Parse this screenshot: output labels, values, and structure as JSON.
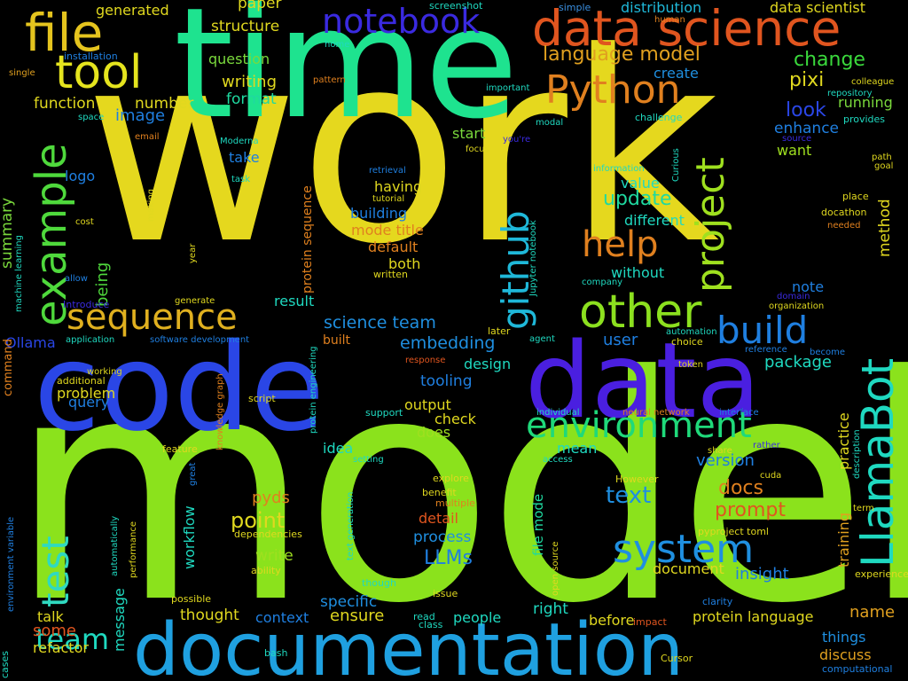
{
  "word_cloud": {
    "background": "#000000",
    "words": [
      {
        "text": "work",
        "color": "#e5d81e"
      },
      {
        "text": "model",
        "color": "#8be21c"
      },
      {
        "text": "time",
        "color": "#1ee38f"
      },
      {
        "text": "code",
        "color": "#2a46e6"
      },
      {
        "text": "data",
        "color": "#4a1fe0"
      },
      {
        "text": "documentation",
        "color": "#1fa0e0"
      },
      {
        "text": "data science",
        "color": "#e0551f"
      },
      {
        "text": "file",
        "color": "#e5c41e"
      },
      {
        "text": "tool",
        "color": "#e5e41e"
      },
      {
        "text": "notebook",
        "color": "#3a2ae0"
      },
      {
        "text": "Python",
        "color": "#e0801f"
      },
      {
        "text": "example",
        "color": "#4fd93c"
      },
      {
        "text": "sequence",
        "color": "#e0b01f"
      },
      {
        "text": "github",
        "color": "#1fb8d9"
      },
      {
        "text": "other",
        "color": "#8ce01f"
      },
      {
        "text": "project",
        "color": "#9fe01f"
      },
      {
        "text": "help",
        "color": "#e0801f"
      },
      {
        "text": "build",
        "color": "#1f7fe0"
      },
      {
        "text": "LlamaBot",
        "color": "#1fd9c0"
      },
      {
        "text": "environment",
        "color": "#1fd97a"
      },
      {
        "text": "system",
        "color": "#1f8fe0"
      },
      {
        "text": "test",
        "color": "#2fd9c0"
      },
      {
        "text": "team",
        "color": "#1fd9c0"
      },
      {
        "text": "language model",
        "color": "#e0a01f"
      },
      {
        "text": "structure",
        "color": "#e0d81f"
      },
      {
        "text": "generated",
        "color": "#e0d81f"
      },
      {
        "text": "paper",
        "color": "#e0d81f"
      },
      {
        "text": "screenshot",
        "color": "#1fd9c0"
      },
      {
        "text": "simple",
        "color": "#3a8fe0"
      },
      {
        "text": "distribution",
        "color": "#1fb8d9"
      },
      {
        "text": "data scientist",
        "color": "#e0d81f"
      },
      {
        "text": "human",
        "color": "#e0801f"
      },
      {
        "text": "installation",
        "color": "#1f7fe0"
      },
      {
        "text": "question",
        "color": "#7ad93c"
      },
      {
        "text": "writing",
        "color": "#e0d81f"
      },
      {
        "text": "format",
        "color": "#1fd9a0"
      },
      {
        "text": "function",
        "color": "#e0d81f"
      },
      {
        "text": "number",
        "color": "#e0d81f"
      },
      {
        "text": "image",
        "color": "#1f7fe0"
      },
      {
        "text": "change",
        "color": "#3ad93c"
      },
      {
        "text": "pixi",
        "color": "#e0d81f"
      },
      {
        "text": "look",
        "color": "#2a46e6"
      },
      {
        "text": "enhance",
        "color": "#1f7fe0"
      },
      {
        "text": "create",
        "color": "#1f8fe0"
      },
      {
        "text": "home",
        "color": "#1fd9c0"
      },
      {
        "text": "pattern",
        "color": "#e0801f"
      },
      {
        "text": "important",
        "color": "#1fd9c0"
      },
      {
        "text": "repository",
        "color": "#1fd9c0"
      },
      {
        "text": "colleague",
        "color": "#e0d81f"
      },
      {
        "text": "running",
        "color": "#7ad93c"
      },
      {
        "text": "provides",
        "color": "#1fd9c0"
      },
      {
        "text": "challenge",
        "color": "#1fd9c0"
      },
      {
        "text": "modal",
        "color": "#1fd9c0"
      },
      {
        "text": "single",
        "color": "#e0a01f"
      },
      {
        "text": "space",
        "color": "#1fd9c0"
      },
      {
        "text": "email",
        "color": "#e0801f"
      },
      {
        "text": "Moderna",
        "color": "#1fd9c0"
      },
      {
        "text": "start",
        "color": "#7ad93c"
      },
      {
        "text": "you're",
        "color": "#3a2ae0"
      },
      {
        "text": "focus",
        "color": "#e0d81f"
      },
      {
        "text": "source",
        "color": "#3a2ae0"
      },
      {
        "text": "want",
        "color": "#9fe01f"
      },
      {
        "text": "take",
        "color": "#1f7fe0"
      },
      {
        "text": "task",
        "color": "#1fd9c0"
      },
      {
        "text": "logo",
        "color": "#1f7fe0"
      },
      {
        "text": "summary",
        "color": "#7ad93c"
      },
      {
        "text": "making",
        "color": "#e0d81f"
      },
      {
        "text": "retrieval",
        "color": "#1f7fe0"
      },
      {
        "text": "tutorial",
        "color": "#e0d81f"
      },
      {
        "text": "having",
        "color": "#e0d81f"
      },
      {
        "text": "information",
        "color": "#1fd9c0"
      },
      {
        "text": "Curious",
        "color": "#1fd9c0"
      },
      {
        "text": "path",
        "color": "#e0d81f"
      },
      {
        "text": "goal",
        "color": "#e0d81f"
      },
      {
        "text": "value",
        "color": "#1fd9c0"
      },
      {
        "text": "update",
        "color": "#1fd9a0"
      },
      {
        "text": "building",
        "color": "#1f7fe0"
      },
      {
        "text": "Jupyter notebook",
        "color": "#1fd9c0"
      },
      {
        "text": "different",
        "color": "#1fd9c0"
      },
      {
        "text": "place",
        "color": "#e0d81f"
      },
      {
        "text": "docathon",
        "color": "#e0d81f"
      },
      {
        "text": "needed",
        "color": "#e0801f"
      },
      {
        "text": "method",
        "color": "#e0d81f"
      },
      {
        "text": "cost",
        "color": "#e0d81f"
      },
      {
        "text": "machine learning",
        "color": "#1fd9c0"
      },
      {
        "text": "year",
        "color": "#e0d81f"
      },
      {
        "text": "allow",
        "color": "#1f7fe0"
      },
      {
        "text": "being",
        "color": "#4fd93c"
      },
      {
        "text": "mode title",
        "color": "#e0801f"
      },
      {
        "text": "default",
        "color": "#e0801f"
      },
      {
        "text": "both",
        "color": "#e0d81f"
      },
      {
        "text": "written",
        "color": "#e0d81f"
      },
      {
        "text": "protein sequence",
        "color": "#e0801f"
      },
      {
        "text": "without",
        "color": "#1fd9c0"
      },
      {
        "text": "company",
        "color": "#1fd9c0"
      },
      {
        "text": "note",
        "color": "#1f7fe0"
      },
      {
        "text": "domain",
        "color": "#3a2ae0"
      },
      {
        "text": "organization",
        "color": "#e0d81f"
      },
      {
        "text": "Introduce",
        "color": "#3a2ae0"
      },
      {
        "text": "generate",
        "color": "#e0d81f"
      },
      {
        "text": "result",
        "color": "#1fd9c0"
      },
      {
        "text": "science team",
        "color": "#1f8fe0"
      },
      {
        "text": "Ollama",
        "color": "#2a46e6"
      },
      {
        "text": "application",
        "color": "#1fd9c0"
      },
      {
        "text": "software development",
        "color": "#1f7fe0"
      },
      {
        "text": "built",
        "color": "#e0801f"
      },
      {
        "text": "embedding",
        "color": "#1f8fe0"
      },
      {
        "text": "user",
        "color": "#1f7fe0"
      },
      {
        "text": "agent",
        "color": "#1fd9c0"
      },
      {
        "text": "automation",
        "color": "#1fd9c0"
      },
      {
        "text": "choice",
        "color": "#e0d81f"
      },
      {
        "text": "reference",
        "color": "#1f7fe0"
      },
      {
        "text": "become",
        "color": "#1f7fe0"
      },
      {
        "text": "package",
        "color": "#1fd9c0"
      },
      {
        "text": "command",
        "color": "#e0801f"
      },
      {
        "text": "working",
        "color": "#e0d81f"
      },
      {
        "text": "additional",
        "color": "#e0d81f"
      },
      {
        "text": "problem",
        "color": "#e0d81f"
      },
      {
        "text": "query",
        "color": "#1f7fe0"
      },
      {
        "text": "protein engineering",
        "color": "#1fd9c0"
      },
      {
        "text": "knowledge graph",
        "color": "#e0801f"
      },
      {
        "text": "script",
        "color": "#e0d81f"
      },
      {
        "text": "response",
        "color": "#e0551f"
      },
      {
        "text": "design",
        "color": "#1fd9c0"
      },
      {
        "text": "tooling",
        "color": "#1f7fe0"
      },
      {
        "text": "token",
        "color": "#e0d81f"
      },
      {
        "text": "practice",
        "color": "#e0d81f"
      },
      {
        "text": "support",
        "color": "#1fd9c0"
      },
      {
        "text": "output",
        "color": "#e0d81f"
      },
      {
        "text": "check",
        "color": "#e0d81f"
      },
      {
        "text": "does",
        "color": "#9fe01f"
      },
      {
        "text": "individual",
        "color": "#1fd9c0"
      },
      {
        "text": "neural network",
        "color": "#e0801f"
      },
      {
        "text": "interface",
        "color": "#1f7fe0"
      },
      {
        "text": "version",
        "color": "#1f7fe0"
      },
      {
        "text": "rather",
        "color": "#3a2ae0"
      },
      {
        "text": "share",
        "color": "#e0d81f"
      },
      {
        "text": "description",
        "color": "#1fd9c0"
      },
      {
        "text": "feature",
        "color": "#e0d81f"
      },
      {
        "text": "idea",
        "color": "#1fd9c0"
      },
      {
        "text": "setting",
        "color": "#1fd9c0"
      },
      {
        "text": "mean",
        "color": "#1fd9c0"
      },
      {
        "text": "access",
        "color": "#1fd9c0"
      },
      {
        "text": "cuda",
        "color": "#e0d81f"
      },
      {
        "text": "training",
        "color": "#e0a01f"
      },
      {
        "text": "great",
        "color": "#1f7fe0"
      },
      {
        "text": "explore",
        "color": "#e0d81f"
      },
      {
        "text": "benefit",
        "color": "#e0d81f"
      },
      {
        "text": "multiple",
        "color": "#e0801f"
      },
      {
        "text": "However",
        "color": "#e0d81f"
      },
      {
        "text": "docs",
        "color": "#e0801f"
      },
      {
        "text": "text",
        "color": "#1f8fe0"
      },
      {
        "text": "prompt",
        "color": "#e0551f"
      },
      {
        "text": "term",
        "color": "#e0d81f"
      },
      {
        "text": "cases",
        "color": "#1fd9c0"
      },
      {
        "text": "environment variable",
        "color": "#1f7fe0"
      },
      {
        "text": "automatically",
        "color": "#1fd9c0"
      },
      {
        "text": "performance",
        "color": "#e0d81f"
      },
      {
        "text": "workflow",
        "color": "#1fd9c0"
      },
      {
        "text": "pyds",
        "color": "#e0801f"
      },
      {
        "text": "point",
        "color": "#e0d81f"
      },
      {
        "text": "dependencies",
        "color": "#e0d81f"
      },
      {
        "text": "text generation",
        "color": "#1fd9c0"
      },
      {
        "text": "detail",
        "color": "#e0551f"
      },
      {
        "text": "process",
        "color": "#1f8fe0"
      },
      {
        "text": "file mode",
        "color": "#1fd9a0"
      },
      {
        "text": "open source",
        "color": "#e0d81f"
      },
      {
        "text": "pyproject toml",
        "color": "#e0d81f"
      },
      {
        "text": "LLMs",
        "color": "#1f7fe0"
      },
      {
        "text": "write",
        "color": "#9fe01f"
      },
      {
        "text": "ability",
        "color": "#e0d81f"
      },
      {
        "text": "document",
        "color": "#e0d81f"
      },
      {
        "text": "insight",
        "color": "#1f7fe0"
      },
      {
        "text": "experience",
        "color": "#e0d81f"
      },
      {
        "text": "message",
        "color": "#1fd9c0"
      },
      {
        "text": "possible",
        "color": "#e0d81f"
      },
      {
        "text": "though",
        "color": "#1fd9c0"
      },
      {
        "text": "specific",
        "color": "#1f8fe0"
      },
      {
        "text": "issue",
        "color": "#e0d81f"
      },
      {
        "text": "right",
        "color": "#1fd9c0"
      },
      {
        "text": "clarity",
        "color": "#1f7fe0"
      },
      {
        "text": "talk",
        "color": "#e0d81f"
      },
      {
        "text": "thought",
        "color": "#e0d81f"
      },
      {
        "text": "context",
        "color": "#1f7fe0"
      },
      {
        "text": "ensure",
        "color": "#e0d81f"
      },
      {
        "text": "read",
        "color": "#1fd9c0"
      },
      {
        "text": "class",
        "color": "#1fd9c0"
      },
      {
        "text": "people",
        "color": "#1fd9c0"
      },
      {
        "text": "before",
        "color": "#e0d81f"
      },
      {
        "text": "impact",
        "color": "#e0551f"
      },
      {
        "text": "protein language",
        "color": "#e0d81f"
      },
      {
        "text": "name",
        "color": "#e0a01f"
      },
      {
        "text": "some",
        "color": "#e0551f"
      },
      {
        "text": "refactor",
        "color": "#e0d81f"
      },
      {
        "text": "bash",
        "color": "#1fd9c0"
      },
      {
        "text": "things",
        "color": "#1f8fe0"
      },
      {
        "text": "Cursor",
        "color": "#e0d81f"
      },
      {
        "text": "discuss",
        "color": "#e0a01f"
      },
      {
        "text": "computational",
        "color": "#1f7fe0"
      },
      {
        "text": "later",
        "color": "#e0d81f"
      }
    ]
  }
}
